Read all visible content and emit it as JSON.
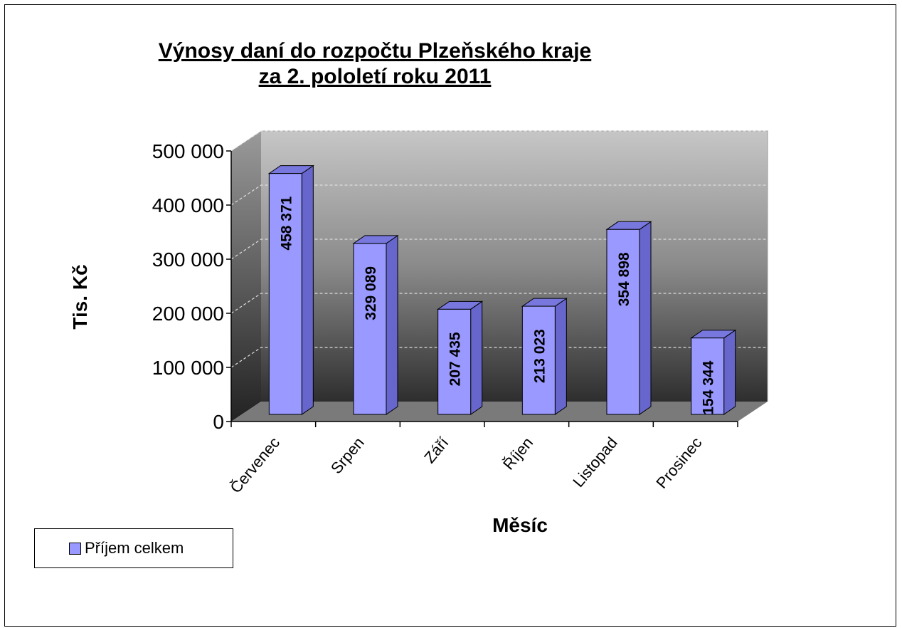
{
  "chart_data": {
    "type": "bar",
    "title_lines": [
      "Výnosy daní do rozpočtu Plzeňského kraje",
      "za 2. pololetí roku 2011"
    ],
    "xlabel": "Měsíc",
    "ylabel": "Tis. Kč",
    "categories": [
      "Červenec",
      "Srpen",
      "Září",
      "Říjen",
      "Listopad",
      "Prosinec"
    ],
    "series": [
      {
        "name": "Příjem celkem",
        "values": [
          458371,
          329089,
          207435,
          213023,
          354898,
          154344
        ]
      }
    ],
    "data_labels": [
      "458 371",
      "329 089",
      "207 435",
      "213 023",
      "354 898",
      "154 344"
    ],
    "yticks": [
      "0",
      "100 000",
      "200 000",
      "300 000",
      "400 000",
      "500 000"
    ],
    "ylim": [
      0,
      500000
    ],
    "grid": true,
    "legend_position": "bottom-left",
    "bar_color": "#9999ff",
    "bar_side_color": "#6666cc",
    "bar_top_color": "#7777dd"
  }
}
